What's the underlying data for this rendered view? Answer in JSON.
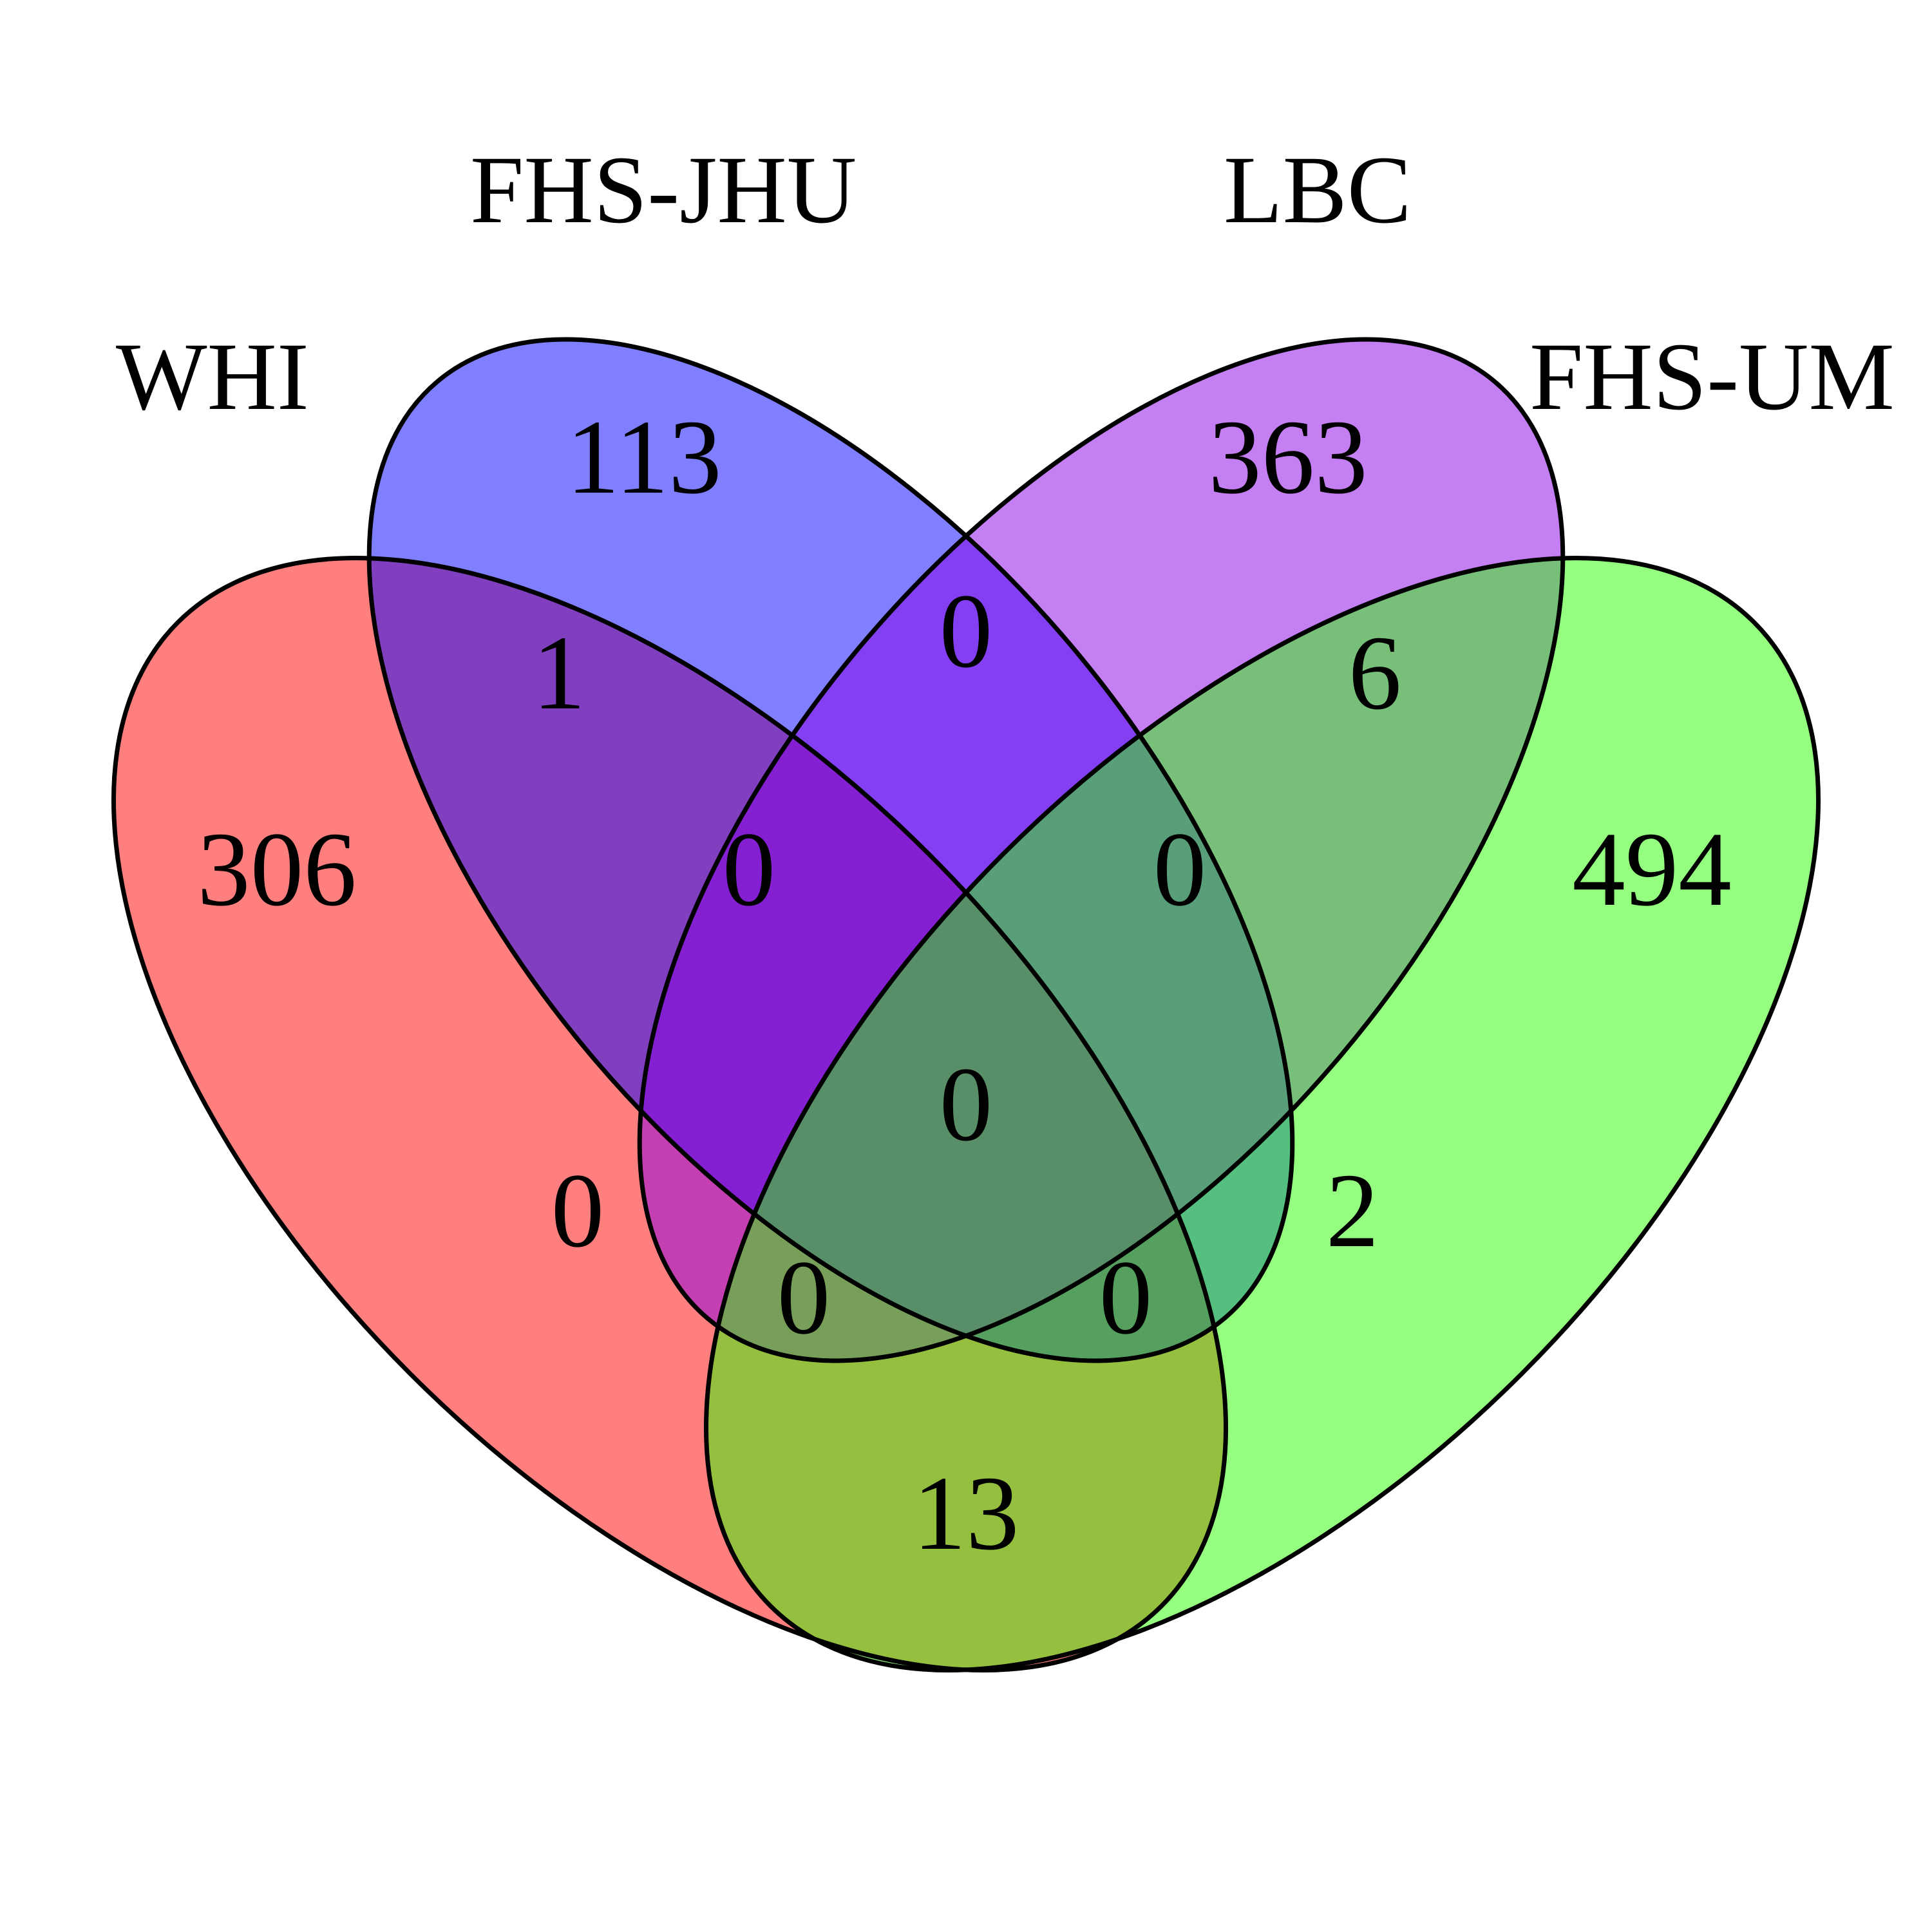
{
  "sets": [
    {
      "key": "whi",
      "name": "WHI",
      "color": "#FF0000"
    },
    {
      "key": "jhu",
      "name": "FHS-JHU",
      "color": "#0000FF"
    },
    {
      "key": "lbc",
      "name": "LBC",
      "color": "#8A00E6"
    },
    {
      "key": "um",
      "name": "FHS-UM",
      "color": "#2CFF00"
    }
  ],
  "counts": {
    "whi_only": "306",
    "jhu_only": "113",
    "lbc_only": "363",
    "um_only": "494",
    "whi_jhu": "1",
    "jhu_lbc": "0",
    "lbc_um": "6",
    "whi_jhu_lbc": "0",
    "jhu_lbc_um": "0",
    "all_four": "0",
    "whi_lbc": "0",
    "jhu_um": "2",
    "whi_lbc_um": "0",
    "whi_jhu_um": "0",
    "whi_um": "13"
  }
}
